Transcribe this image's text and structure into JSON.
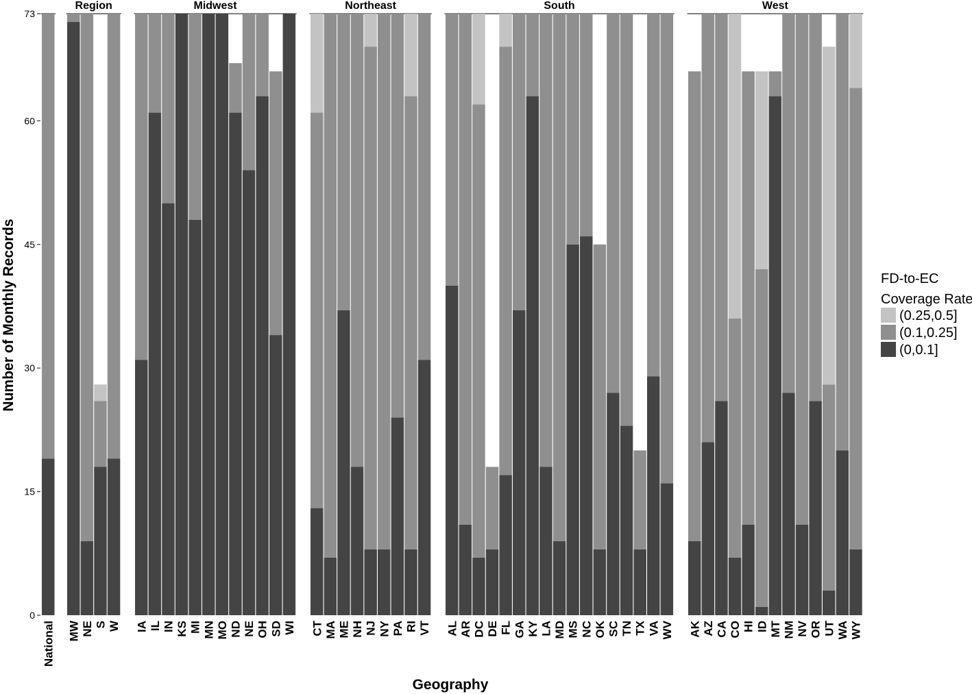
{
  "chart_data": {
    "type": "bar",
    "stacked": true,
    "xlabel": "Geography",
    "ylabel": "Number of Monthly Records",
    "ylim": [
      0,
      73
    ],
    "yticks": [
      0,
      15,
      30,
      45,
      60,
      73
    ],
    "legend": {
      "title_lines": [
        "FD-to-EC",
        "Coverage Rate"
      ],
      "placement": "right",
      "entries": [
        {
          "label": "(0.25,0.5]",
          "color": "#c3c3c3"
        },
        {
          "label": "(0.1,0.25]",
          "color": "#8f8f8f"
        },
        {
          "label": "(0,0.1]",
          "color": "#444444"
        }
      ]
    },
    "series_order": [
      "(0,0.1]",
      "(0.1,0.25]",
      "(0.25,0.5]"
    ],
    "panels": [
      {
        "title": "",
        "bars": [
          {
            "label": "National",
            "values": [
              19,
              54,
              0
            ]
          }
        ]
      },
      {
        "title": "Region",
        "bars": [
          {
            "label": "MW",
            "values": [
              72,
              1,
              0
            ]
          },
          {
            "label": "NE",
            "values": [
              9,
              64,
              0
            ]
          },
          {
            "label": "S",
            "values": [
              18,
              8,
              2
            ]
          },
          {
            "label": "W",
            "values": [
              19,
              54,
              0
            ]
          }
        ]
      },
      {
        "title": "Midwest",
        "bars": [
          {
            "label": "IA",
            "values": [
              31,
              42,
              0
            ]
          },
          {
            "label": "IL",
            "values": [
              61,
              12,
              0
            ]
          },
          {
            "label": "IN",
            "values": [
              50,
              23,
              0
            ]
          },
          {
            "label": "KS",
            "values": [
              73,
              0,
              0
            ]
          },
          {
            "label": "MI",
            "values": [
              48,
              25,
              0
            ]
          },
          {
            "label": "MN",
            "values": [
              73,
              0,
              0
            ]
          },
          {
            "label": "MO",
            "values": [
              73,
              0,
              0
            ]
          },
          {
            "label": "ND",
            "values": [
              61,
              6,
              0
            ]
          },
          {
            "label": "NE",
            "values": [
              54,
              19,
              0
            ]
          },
          {
            "label": "OH",
            "values": [
              63,
              10,
              0
            ]
          },
          {
            "label": "SD",
            "values": [
              34,
              32,
              0
            ]
          },
          {
            "label": "WI",
            "values": [
              73,
              0,
              0
            ]
          }
        ]
      },
      {
        "title": "Northeast",
        "bars": [
          {
            "label": "CT",
            "values": [
              13,
              48,
              12
            ]
          },
          {
            "label": "MA",
            "values": [
              7,
              66,
              0
            ]
          },
          {
            "label": "ME",
            "values": [
              37,
              36,
              0
            ]
          },
          {
            "label": "NH",
            "values": [
              18,
              55,
              0
            ]
          },
          {
            "label": "NJ",
            "values": [
              8,
              61,
              4
            ]
          },
          {
            "label": "NY",
            "values": [
              8,
              65,
              0
            ]
          },
          {
            "label": "PA",
            "values": [
              24,
              49,
              0
            ]
          },
          {
            "label": "RI",
            "values": [
              8,
              55,
              10
            ]
          },
          {
            "label": "VT",
            "values": [
              31,
              42,
              0
            ]
          }
        ]
      },
      {
        "title": "South",
        "bars": [
          {
            "label": "AL",
            "values": [
              40,
              33,
              0
            ]
          },
          {
            "label": "AR",
            "values": [
              11,
              62,
              0
            ]
          },
          {
            "label": "DC",
            "values": [
              7,
              55,
              11
            ]
          },
          {
            "label": "DE",
            "values": [
              8,
              10,
              0
            ]
          },
          {
            "label": "FL",
            "values": [
              17,
              52,
              4
            ]
          },
          {
            "label": "GA",
            "values": [
              37,
              36,
              0
            ]
          },
          {
            "label": "KY",
            "values": [
              63,
              10,
              0
            ]
          },
          {
            "label": "LA",
            "values": [
              18,
              55,
              0
            ]
          },
          {
            "label": "MD",
            "values": [
              9,
              64,
              0
            ]
          },
          {
            "label": "MS",
            "values": [
              45,
              28,
              0
            ]
          },
          {
            "label": "NC",
            "values": [
              46,
              27,
              0
            ]
          },
          {
            "label": "OK",
            "values": [
              8,
              37,
              0
            ]
          },
          {
            "label": "SC",
            "values": [
              27,
              46,
              0
            ]
          },
          {
            "label": "TN",
            "values": [
              23,
              50,
              0
            ]
          },
          {
            "label": "TX",
            "values": [
              8,
              12,
              0
            ]
          },
          {
            "label": "VA",
            "values": [
              29,
              44,
              0
            ]
          },
          {
            "label": "WV",
            "values": [
              16,
              57,
              0
            ]
          }
        ]
      },
      {
        "title": "West",
        "bars": [
          {
            "label": "AK",
            "values": [
              9,
              57,
              0
            ]
          },
          {
            "label": "AZ",
            "values": [
              21,
              52,
              0
            ]
          },
          {
            "label": "CA",
            "values": [
              26,
              47,
              0
            ]
          },
          {
            "label": "CO",
            "values": [
              7,
              29,
              37
            ]
          },
          {
            "label": "HI",
            "values": [
              11,
              55,
              0
            ]
          },
          {
            "label": "ID",
            "values": [
              1,
              41,
              24
            ]
          },
          {
            "label": "MT",
            "values": [
              63,
              3,
              0
            ]
          },
          {
            "label": "NM",
            "values": [
              27,
              46,
              0
            ]
          },
          {
            "label": "NV",
            "values": [
              11,
              62,
              0
            ]
          },
          {
            "label": "OR",
            "values": [
              26,
              47,
              0
            ]
          },
          {
            "label": "UT",
            "values": [
              3,
              25,
              41
            ]
          },
          {
            "label": "WA",
            "values": [
              20,
              53,
              0
            ]
          },
          {
            "label": "WY",
            "values": [
              8,
              56,
              9
            ]
          }
        ]
      }
    ]
  }
}
